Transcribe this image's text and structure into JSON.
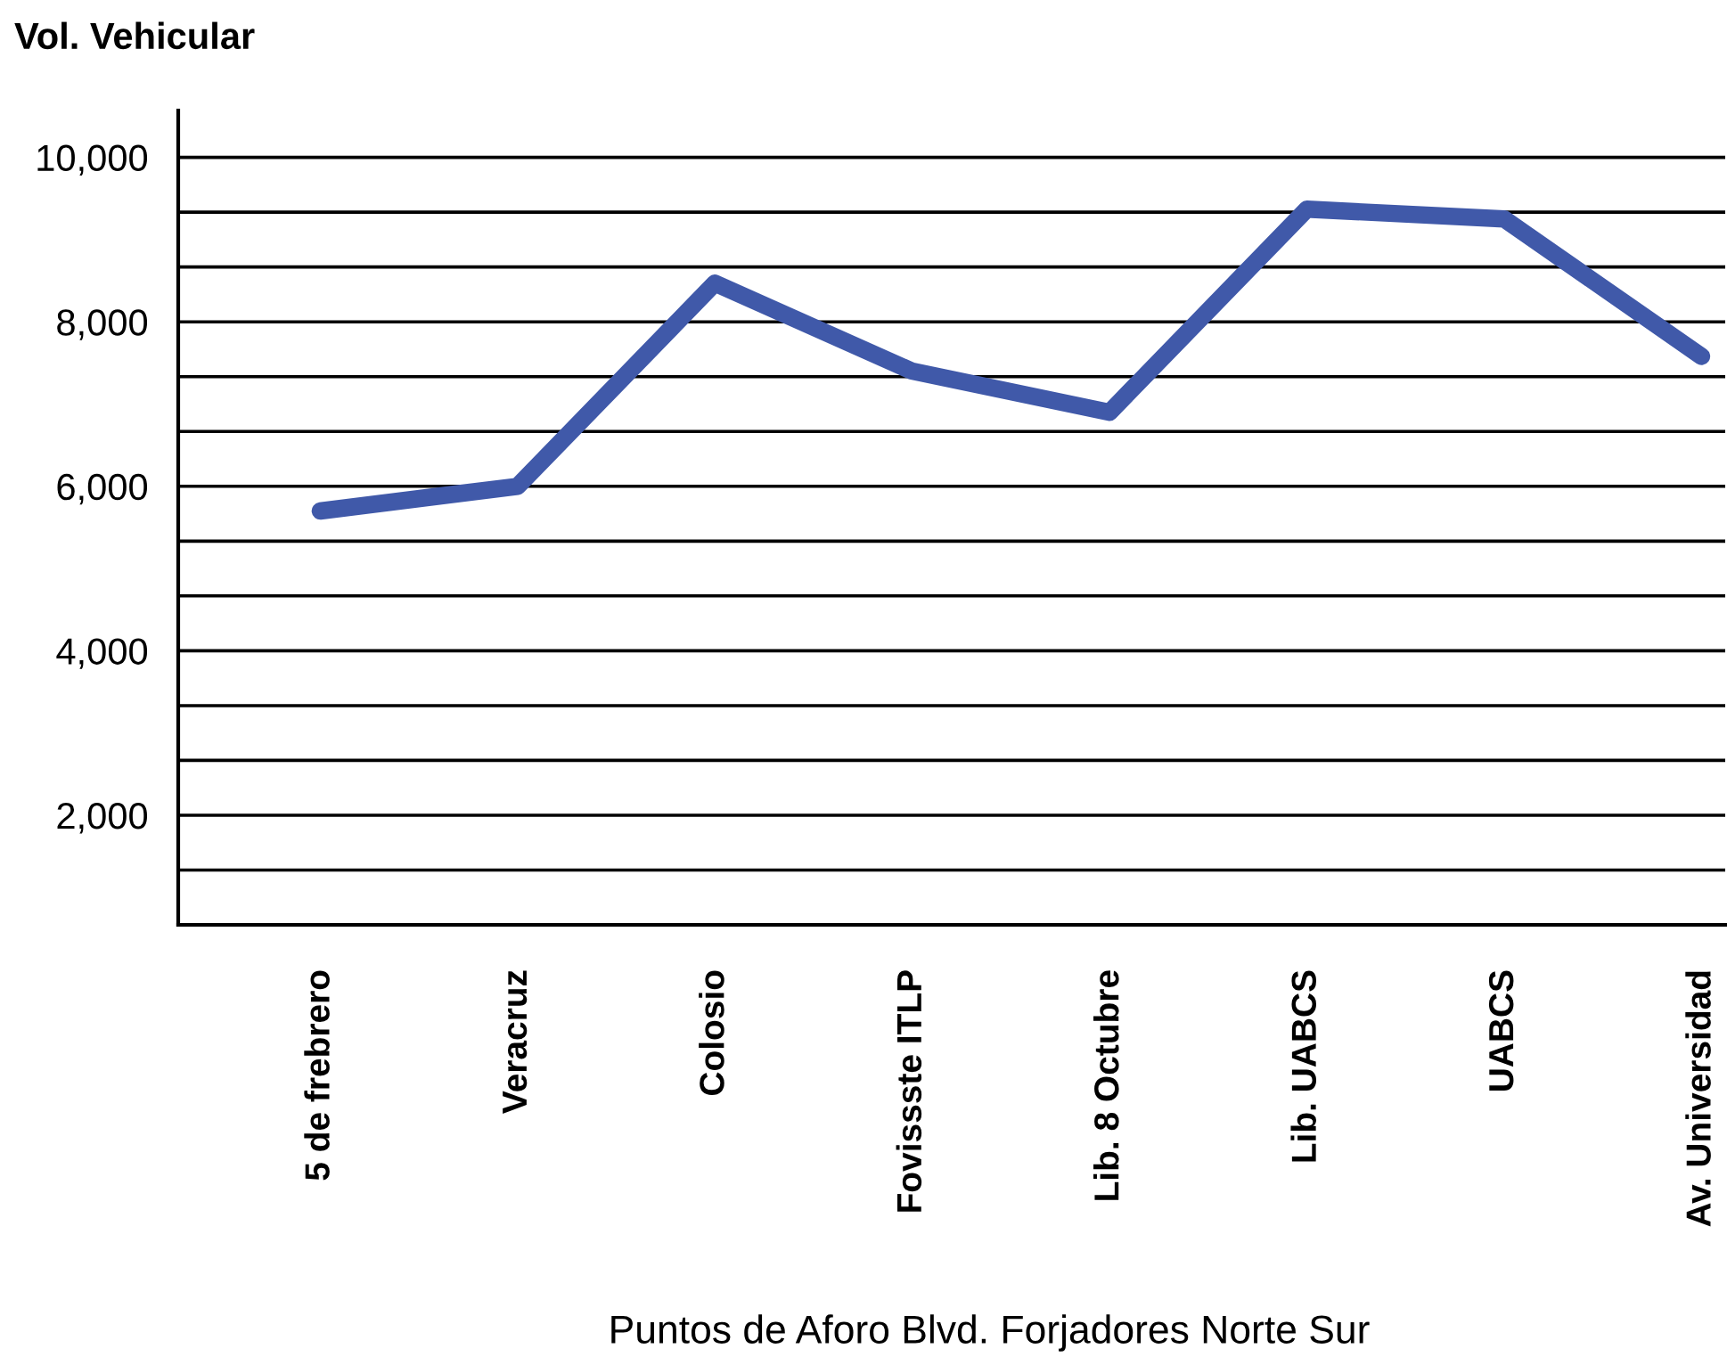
{
  "chart_data": {
    "type": "line",
    "ylabel": "Vol. Vehicular",
    "xlabel": "Puntos de Aforo Blvd. Forjadores Norte Sur",
    "categories": [
      "5 de frebrero",
      "Veracruz",
      "Colosio",
      "Fovissste ITLP",
      "Lib. 8 Octubre",
      "Lib. UABCS",
      "UABCS",
      "Av. Universidad"
    ],
    "series": [
      {
        "color": "#4059a9",
        "values": [
          5700,
          6000,
          8470,
          7400,
          6900,
          9370,
          9250,
          7580
        ]
      }
    ],
    "ylim": [
      667,
      10570
    ],
    "yticks": [
      {
        "value": 667,
        "label": null
      },
      {
        "value": 1333,
        "label": null
      },
      {
        "value": 2000,
        "label": "2,000"
      },
      {
        "value": 2667,
        "label": null
      },
      {
        "value": 3333,
        "label": null
      },
      {
        "value": 4000,
        "label": "4,000"
      },
      {
        "value": 4667,
        "label": null
      },
      {
        "value": 5333,
        "label": null
      },
      {
        "value": 6000,
        "label": "6,000"
      },
      {
        "value": 6667,
        "label": null
      },
      {
        "value": 7333,
        "label": null
      },
      {
        "value": 8000,
        "label": "8,000"
      },
      {
        "value": 8667,
        "label": null
      },
      {
        "value": 9333,
        "label": null
      },
      {
        "value": 10000,
        "label": "10,000"
      }
    ],
    "grid": "y",
    "marker": "none",
    "line_style": "solid",
    "legend": false
  }
}
